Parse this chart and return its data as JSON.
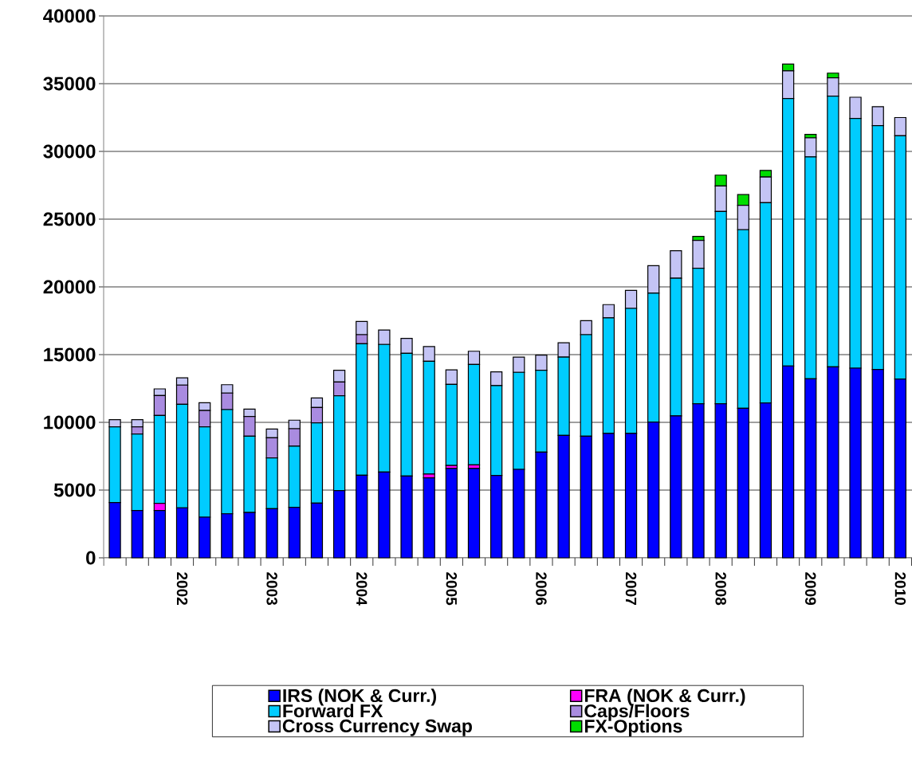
{
  "chart_data": {
    "type": "bar",
    "stacked": true,
    "categories": [
      null,
      null,
      null,
      "2002",
      null,
      null,
      null,
      "2003",
      null,
      null,
      null,
      "2004",
      null,
      null,
      null,
      "2005",
      null,
      null,
      null,
      "2006",
      null,
      null,
      null,
      "2007",
      null,
      null,
      null,
      "2008",
      null,
      null,
      null,
      "2009",
      null,
      null,
      null,
      "2010"
    ],
    "series": [
      {
        "name": "IRS (NOK & Curr.)",
        "color": "#0000ff",
        "values": [
          4080,
          3490,
          3490,
          3690,
          3000,
          3250,
          3350,
          3630,
          3730,
          4040,
          4960,
          6100,
          6330,
          6040,
          5900,
          6590,
          6590,
          6080,
          6530,
          7800,
          9040,
          8980,
          9180,
          9180,
          10020,
          10480,
          11370,
          11370,
          11040,
          11430,
          14160,
          13210,
          14100,
          14000,
          13900,
          13200
        ]
      },
      {
        "name": "FRA (NOK & Curr.)",
        "color": "#ff00ff",
        "values": [
          0,
          0,
          530,
          0,
          0,
          0,
          0,
          0,
          0,
          0,
          0,
          0,
          0,
          0,
          280,
          230,
          270,
          0,
          0,
          0,
          0,
          0,
          0,
          0,
          0,
          0,
          0,
          0,
          0,
          0,
          0,
          0,
          0,
          0,
          0,
          0
        ]
      },
      {
        "name": "Forward FX",
        "color": "#00ccff",
        "values": [
          5590,
          5650,
          6490,
          7640,
          6670,
          7690,
          5630,
          3740,
          4510,
          5920,
          7000,
          9700,
          9420,
          9060,
          8330,
          5980,
          7410,
          6630,
          7160,
          6040,
          5780,
          7490,
          8530,
          9230,
          9520,
          10160,
          10000,
          14190,
          13180,
          14780,
          19740,
          16390,
          19980,
          18430,
          18000,
          17950
        ]
      },
      {
        "name": "Caps/Floors",
        "color": "#a98be0",
        "values": [
          0,
          530,
          1470,
          1420,
          1210,
          1220,
          1450,
          1490,
          1290,
          1140,
          1020,
          670,
          0,
          0,
          0,
          0,
          0,
          0,
          0,
          0,
          0,
          0,
          0,
          0,
          0,
          0,
          0,
          0,
          0,
          0,
          0,
          0,
          0,
          0,
          0,
          0
        ]
      },
      {
        "name": "Cross Currency Swap",
        "color": "#c4c4f5",
        "values": [
          530,
          530,
          490,
          540,
          570,
          620,
          550,
          650,
          630,
          700,
          860,
          980,
          1070,
          1100,
          1080,
          1080,
          980,
          1020,
          1130,
          1120,
          1060,
          1040,
          980,
          1330,
          2030,
          2030,
          2060,
          1890,
          1800,
          1900,
          2050,
          1400,
          1350,
          1570,
          1400,
          1350
        ]
      },
      {
        "name": "FX-Options",
        "color": "#00dd00",
        "values": [
          0,
          0,
          0,
          0,
          0,
          0,
          0,
          0,
          0,
          0,
          0,
          0,
          0,
          0,
          0,
          0,
          0,
          0,
          0,
          0,
          0,
          0,
          0,
          0,
          0,
          0,
          300,
          800,
          790,
          490,
          500,
          260,
          350,
          0,
          0,
          0
        ]
      }
    ],
    "ylim": [
      0,
      40000
    ],
    "yticks": [
      0,
      5000,
      10000,
      15000,
      20000,
      25000,
      30000,
      35000,
      40000
    ],
    "grid": "y",
    "legend": "bottom"
  }
}
